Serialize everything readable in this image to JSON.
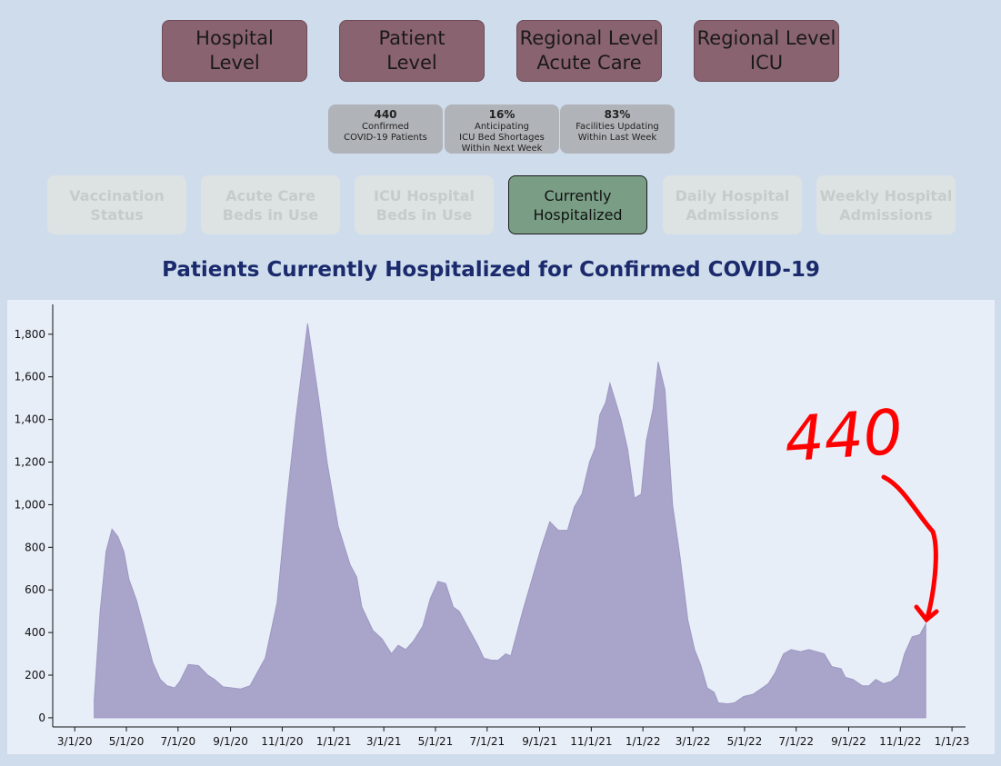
{
  "nav": [
    [
      "Hospital",
      "Level"
    ],
    [
      "Patient",
      "Level"
    ],
    [
      "Regional Level",
      "Acute Care"
    ],
    [
      "Regional Level",
      "ICU"
    ]
  ],
  "stats": [
    {
      "value": "440",
      "lines": [
        "Confirmed",
        "COVID-19 Patients"
      ]
    },
    {
      "value": "16%",
      "lines": [
        "Anticipating",
        "ICU Bed Shortages",
        "Within Next Week"
      ]
    },
    {
      "value": "83%",
      "lines": [
        "Facilities Updating",
        "Within Last Week"
      ]
    }
  ],
  "tabs": [
    [
      "Vaccination",
      "Status"
    ],
    [
      "Acute Care",
      "Beds in Use"
    ],
    [
      "ICU Hospital",
      "Beds in Use"
    ],
    [
      "Currently",
      "Hospitalized"
    ],
    [
      "Daily Hospital",
      "Admissions"
    ],
    [
      "Weekly Hospital",
      "Admissions"
    ]
  ],
  "active_tab": 3,
  "chart_data": {
    "type": "area",
    "title": "Patients Currently Hospitalized for Confirmed COVID-19",
    "annotation": "440",
    "color": "#a9a4c9",
    "x": [
      "2020-03-24",
      "2020-03-31",
      "2020-04-07",
      "2020-04-14",
      "2020-04-21",
      "2020-04-28",
      "2020-05-04",
      "2020-05-13",
      "2020-05-23",
      "2020-06-01",
      "2020-06-10",
      "2020-06-18",
      "2020-06-27",
      "2020-07-03",
      "2020-07-13",
      "2020-07-25",
      "2020-08-05",
      "2020-08-13",
      "2020-08-23",
      "2020-09-03",
      "2020-09-13",
      "2020-09-24",
      "2020-10-05",
      "2020-10-12",
      "2020-10-26",
      "2020-11-06",
      "2020-11-17",
      "2020-12-01",
      "2020-12-14",
      "2020-12-24",
      "2021-01-06",
      "2021-01-20",
      "2021-01-28",
      "2021-02-03",
      "2021-02-16",
      "2021-02-27",
      "2021-03-10",
      "2021-03-18",
      "2021-03-27",
      "2021-04-05",
      "2021-04-16",
      "2021-04-25",
      "2021-05-04",
      "2021-05-13",
      "2021-05-22",
      "2021-05-29",
      "2021-06-09",
      "2021-06-20",
      "2021-06-27",
      "2021-07-06",
      "2021-07-14",
      "2021-07-23",
      "2021-07-29",
      "2021-08-12",
      "2021-08-23",
      "2021-09-03",
      "2021-09-13",
      "2021-09-23",
      "2021-10-04",
      "2021-10-12",
      "2021-10-21",
      "2021-10-30",
      "2021-11-06",
      "2021-11-11",
      "2021-11-18",
      "2021-11-23",
      "2021-11-30",
      "2021-12-06",
      "2021-12-14",
      "2021-12-22",
      "2021-12-30",
      "2022-01-05",
      "2022-01-13",
      "2022-01-19",
      "2022-01-27",
      "2022-02-05",
      "2022-02-14",
      "2022-02-23",
      "2022-03-03",
      "2022-03-10",
      "2022-03-18",
      "2022-03-26",
      "2022-03-31",
      "2022-04-11",
      "2022-04-19",
      "2022-04-30",
      "2022-05-11",
      "2022-05-22",
      "2022-05-29",
      "2022-06-06",
      "2022-06-16",
      "2022-06-25",
      "2022-07-06",
      "2022-07-16",
      "2022-07-25",
      "2022-08-03",
      "2022-08-12",
      "2022-08-23",
      "2022-08-28",
      "2022-09-06",
      "2022-09-17",
      "2022-09-25",
      "2022-10-03",
      "2022-10-12",
      "2022-10-21",
      "2022-10-30",
      "2022-11-06",
      "2022-11-15",
      "2022-11-24",
      "2022-12-01"
    ],
    "values": [
      85,
      500,
      780,
      885,
      850,
      780,
      650,
      550,
      400,
      260,
      180,
      150,
      140,
      170,
      250,
      245,
      200,
      180,
      145,
      140,
      135,
      150,
      230,
      280,
      540,
      1000,
      1400,
      1850,
      1500,
      1200,
      900,
      720,
      660,
      520,
      410,
      370,
      300,
      340,
      320,
      360,
      430,
      560,
      640,
      630,
      520,
      500,
      420,
      340,
      280,
      270,
      270,
      300,
      290,
      500,
      650,
      800,
      920,
      880,
      880,
      990,
      1050,
      1200,
      1270,
      1420,
      1480,
      1570,
      1480,
      1400,
      1260,
      1030,
      1050,
      1300,
      1450,
      1670,
      1540,
      1000,
      750,
      460,
      320,
      250,
      140,
      120,
      70,
      65,
      70,
      100,
      110,
      140,
      160,
      210,
      300,
      320,
      310,
      320,
      310,
      300,
      240,
      230,
      190,
      180,
      150,
      150,
      180,
      160,
      170,
      200,
      300,
      380,
      390,
      440
    ],
    "xlim": [
      "2020-02-04",
      "2023-01-17"
    ],
    "xticks": [
      {
        "value": "2020-03-01",
        "label": "3/1/20"
      },
      {
        "value": "2020-05-01",
        "label": "5/1/20"
      },
      {
        "value": "2020-07-01",
        "label": "7/1/20"
      },
      {
        "value": "2020-09-01",
        "label": "9/1/20"
      },
      {
        "value": "2020-11-01",
        "label": "11/1/20"
      },
      {
        "value": "2021-01-01",
        "label": "1/1/21"
      },
      {
        "value": "2021-03-01",
        "label": "3/1/21"
      },
      {
        "value": "2021-05-01",
        "label": "5/1/21"
      },
      {
        "value": "2021-07-01",
        "label": "7/1/21"
      },
      {
        "value": "2021-09-01",
        "label": "9/1/21"
      },
      {
        "value": "2021-11-01",
        "label": "11/1/21"
      },
      {
        "value": "2022-01-01",
        "label": "1/1/22"
      },
      {
        "value": "2022-03-01",
        "label": "3/1/22"
      },
      {
        "value": "2022-05-01",
        "label": "5/1/22"
      },
      {
        "value": "2022-07-01",
        "label": "7/1/22"
      },
      {
        "value": "2022-09-01",
        "label": "9/1/22"
      },
      {
        "value": "2022-11-01",
        "label": "11/1/22"
      },
      {
        "value": "2023-01-01",
        "label": "1/1/23"
      }
    ],
    "ylim": [
      -43,
      1940
    ],
    "yticks": [
      0,
      200,
      400,
      600,
      800,
      {
        "value": 1000,
        "label": "1,000"
      },
      {
        "value": 1200,
        "label": "1,200"
      },
      {
        "value": 1400,
        "label": "1,400"
      },
      {
        "value": 1600,
        "label": "1,600"
      },
      {
        "value": 1800,
        "label": "1,800"
      }
    ]
  }
}
